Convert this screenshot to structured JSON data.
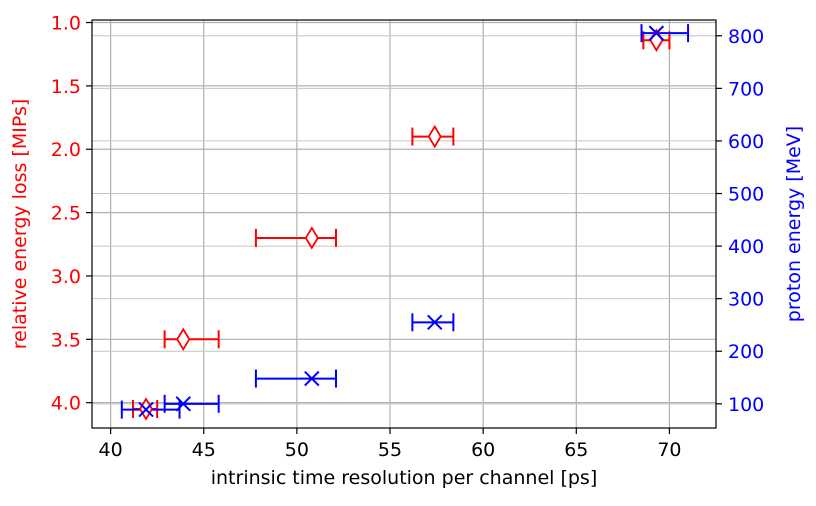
{
  "chart_data": {
    "type": "scatter",
    "title": "",
    "xlabel": "intrinsic time resolution per channel [ps]",
    "ylabel_left": "relative energy loss [MIPs]",
    "ylabel_right": "proton energy [MeV]",
    "xlim": [
      39,
      72.5
    ],
    "ylim_left": [
      4.2,
      0.98
    ],
    "ylim_right": [
      54,
      830
    ],
    "left_axis_inverted": true,
    "grid": true,
    "x_ticks": [
      "40",
      "45",
      "50",
      "55",
      "60",
      "65",
      "70"
    ],
    "y_left_ticks": [
      "1.0",
      "1.5",
      "2.0",
      "2.5",
      "3.0",
      "3.5",
      "4.0"
    ],
    "y_right_ticks": [
      "100",
      "200",
      "300",
      "400",
      "500",
      "600",
      "700",
      "800"
    ],
    "colors": {
      "left": "#ff0000",
      "right": "#0000ff"
    },
    "series": [
      {
        "axis": "left",
        "marker": "diamond",
        "color": "#ff0000",
        "points": [
          {
            "x": 69.3,
            "y": 1.14,
            "xerr": [
              68.6,
              70.0
            ]
          },
          {
            "x": 57.4,
            "y": 1.9,
            "xerr": [
              56.2,
              58.4
            ]
          },
          {
            "x": 50.8,
            "y": 2.7,
            "xerr": [
              47.8,
              52.1
            ]
          },
          {
            "x": 43.9,
            "y": 3.5,
            "xerr": [
              42.9,
              45.8
            ]
          },
          {
            "x": 41.9,
            "y": 4.05,
            "xerr": [
              41.2,
              42.5
            ]
          }
        ]
      },
      {
        "axis": "right",
        "marker": "x",
        "color": "#0000ff",
        "points": [
          {
            "x": 69.3,
            "y": 805,
            "xerr": [
              68.5,
              71.0
            ]
          },
          {
            "x": 57.4,
            "y": 255,
            "xerr": [
              56.2,
              58.4
            ]
          },
          {
            "x": 50.8,
            "y": 148,
            "xerr": [
              47.8,
              52.1
            ]
          },
          {
            "x": 43.9,
            "y": 100,
            "xerr": [
              42.9,
              45.8
            ]
          },
          {
            "x": 41.9,
            "y": 89,
            "xerr": [
              40.6,
              43.7
            ]
          }
        ]
      }
    ]
  }
}
